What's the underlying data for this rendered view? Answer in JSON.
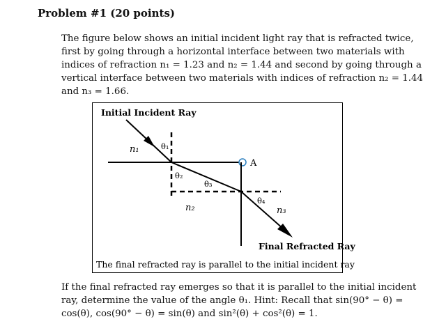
{
  "problem": {
    "title": "Problem #1 (20 points)"
  },
  "intro_lines": [
    "The figure below shows an initial incident light ray that is refracted twice,",
    "first by going through a horizontal interface between two materials with",
    "indices of refraction n₁ = 1.23 and n₂ = 1.44 and second by going through a",
    "vertical interface between two materials with indices of refraction n₂ = 1.44",
    "and n₃ = 1.66."
  ],
  "figure": {
    "initial_label": "Initial Incident Ray",
    "final_label": "Final Refracted Ray",
    "caption": "The final refracted ray is parallel to the initial incident ray",
    "n1": "n₁",
    "n2": "n₂",
    "n3": "n₃",
    "theta1": "θ₁",
    "theta2": "θ₂",
    "theta3": "θ₃",
    "theta4": "θ₄",
    "point_a": "A"
  },
  "question_lines": [
    "If the final refracted ray emerges so that it is parallel to the initial incident",
    "ray, determine the value of the angle θ₁. Hint: Recall that sin(90° − θ) =",
    "cos(θ), cos(90° − θ) = sin(θ) and sin²(θ) + cos²(θ) = 1."
  ]
}
